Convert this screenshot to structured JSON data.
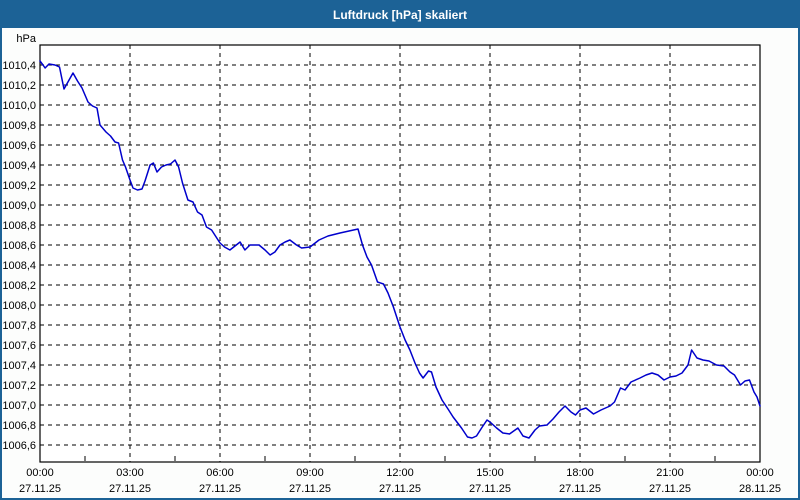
{
  "window": {
    "title": "Luftdruck [hPa] skaliert"
  },
  "colors": {
    "titlebar": "#1c6296",
    "window_border": "#1c6296",
    "window_bg": "#fcfdfc",
    "plot_bg": "#ffffff",
    "grid": "#000000",
    "axis": "#000000",
    "line": "#0000cc",
    "text": "#000000",
    "title_text": "#ffffff"
  },
  "chart_data": {
    "type": "line",
    "title": "Luftdruck [hPa] skaliert",
    "ylabel": "hPa",
    "grid": "dashed",
    "legend": "none",
    "y_axis": {
      "min": 1006.43,
      "max": 1010.6,
      "decimal_separator": ","
    },
    "x_axis": {
      "min_hours": 0,
      "max_hours": 24
    },
    "y_ticks": [
      {
        "label": "1010,4",
        "value": 1010.4
      },
      {
        "label": "1010,2",
        "value": 1010.2
      },
      {
        "label": "1010,0",
        "value": 1010.0
      },
      {
        "label": "1009,8",
        "value": 1009.8
      },
      {
        "label": "1009,6",
        "value": 1009.6
      },
      {
        "label": "1009,4",
        "value": 1009.4
      },
      {
        "label": "1009,2",
        "value": 1009.2
      },
      {
        "label": "1009,0",
        "value": 1009.0
      },
      {
        "label": "1008,8",
        "value": 1008.8
      },
      {
        "label": "1008,6",
        "value": 1008.6
      },
      {
        "label": "1008,4",
        "value": 1008.4
      },
      {
        "label": "1008,2",
        "value": 1008.2
      },
      {
        "label": "1008,0",
        "value": 1008.0
      },
      {
        "label": "1007,8",
        "value": 1007.8
      },
      {
        "label": "1007,6",
        "value": 1007.6
      },
      {
        "label": "1007,4",
        "value": 1007.4
      },
      {
        "label": "1007,2",
        "value": 1007.2
      },
      {
        "label": "1007,0",
        "value": 1007.0
      },
      {
        "label": "1006,8",
        "value": 1006.8
      },
      {
        "label": "1006,6",
        "value": 1006.6
      }
    ],
    "x_ticks": [
      {
        "hour": 0,
        "time": "00:00",
        "date": "27.11.25"
      },
      {
        "hour": 3,
        "time": "03:00",
        "date": "27.11.25"
      },
      {
        "hour": 6,
        "time": "06:00",
        "date": "27.11.25"
      },
      {
        "hour": 9,
        "time": "09:00",
        "date": "27.11.25"
      },
      {
        "hour": 12,
        "time": "12:00",
        "date": "27.11.25"
      },
      {
        "hour": 15,
        "time": "15:00",
        "date": "27.11.25"
      },
      {
        "hour": 18,
        "time": "18:00",
        "date": "27.11.25"
      },
      {
        "hour": 21,
        "time": "21:00",
        "date": "27.11.25"
      },
      {
        "hour": 24,
        "time": "00:00",
        "date": "28.11.25"
      }
    ],
    "minor_x_tick_hours": [
      1.5,
      4.5,
      7.5,
      10.5,
      13.5,
      16.5,
      19.5,
      22.5
    ],
    "series": [
      {
        "name": "Luftdruck",
        "color": "#0000cc",
        "points": [
          [
            0,
            1010.44
          ],
          [
            0.1,
            1010.4
          ],
          [
            0.17,
            1010.37
          ],
          [
            0.3,
            1010.41
          ],
          [
            0.5,
            1010.4
          ],
          [
            0.65,
            1010.38
          ],
          [
            0.8,
            1010.16
          ],
          [
            0.95,
            1010.24
          ],
          [
            1.1,
            1010.32
          ],
          [
            1.25,
            1010.24
          ],
          [
            1.4,
            1010.17
          ],
          [
            1.6,
            1010.03
          ],
          [
            1.75,
            1009.99
          ],
          [
            1.9,
            1009.97
          ],
          [
            2.0,
            1009.8
          ],
          [
            2.2,
            1009.73
          ],
          [
            2.35,
            1009.69
          ],
          [
            2.5,
            1009.63
          ],
          [
            2.62,
            1009.62
          ],
          [
            2.75,
            1009.45
          ],
          [
            2.85,
            1009.38
          ],
          [
            3.0,
            1009.25
          ],
          [
            3.1,
            1009.17
          ],
          [
            3.25,
            1009.15
          ],
          [
            3.4,
            1009.16
          ],
          [
            3.5,
            1009.24
          ],
          [
            3.67,
            1009.4
          ],
          [
            3.78,
            1009.42
          ],
          [
            3.9,
            1009.33
          ],
          [
            4.05,
            1009.38
          ],
          [
            4.2,
            1009.4
          ],
          [
            4.35,
            1009.41
          ],
          [
            4.5,
            1009.45
          ],
          [
            4.62,
            1009.38
          ],
          [
            4.75,
            1009.22
          ],
          [
            4.93,
            1009.05
          ],
          [
            5.1,
            1009.03
          ],
          [
            5.25,
            1008.93
          ],
          [
            5.4,
            1008.9
          ],
          [
            5.55,
            1008.78
          ],
          [
            5.72,
            1008.75
          ],
          [
            6.0,
            1008.62
          ],
          [
            6.15,
            1008.58
          ],
          [
            6.33,
            1008.55
          ],
          [
            6.5,
            1008.59
          ],
          [
            6.67,
            1008.63
          ],
          [
            6.83,
            1008.55
          ],
          [
            7.0,
            1008.6
          ],
          [
            7.3,
            1008.6
          ],
          [
            7.5,
            1008.55
          ],
          [
            7.67,
            1008.5
          ],
          [
            7.83,
            1008.53
          ],
          [
            8.0,
            1008.6
          ],
          [
            8.17,
            1008.63
          ],
          [
            8.33,
            1008.65
          ],
          [
            8.55,
            1008.6
          ],
          [
            8.72,
            1008.57
          ],
          [
            9.0,
            1008.58
          ],
          [
            9.3,
            1008.65
          ],
          [
            9.6,
            1008.69
          ],
          [
            10.0,
            1008.72
          ],
          [
            10.3,
            1008.74
          ],
          [
            10.6,
            1008.76
          ],
          [
            10.75,
            1008.6
          ],
          [
            10.9,
            1008.48
          ],
          [
            11.05,
            1008.4
          ],
          [
            11.25,
            1008.23
          ],
          [
            11.45,
            1008.21
          ],
          [
            11.6,
            1008.12
          ],
          [
            11.78,
            1007.98
          ],
          [
            12.0,
            1007.78
          ],
          [
            12.17,
            1007.65
          ],
          [
            12.33,
            1007.55
          ],
          [
            12.5,
            1007.42
          ],
          [
            12.65,
            1007.32
          ],
          [
            12.77,
            1007.27
          ],
          [
            12.95,
            1007.34
          ],
          [
            13.05,
            1007.33
          ],
          [
            13.2,
            1007.18
          ],
          [
            13.4,
            1007.05
          ],
          [
            13.6,
            1006.96
          ],
          [
            13.77,
            1006.88
          ],
          [
            14.05,
            1006.77
          ],
          [
            14.25,
            1006.68
          ],
          [
            14.4,
            1006.67
          ],
          [
            14.55,
            1006.69
          ],
          [
            14.72,
            1006.77
          ],
          [
            14.9,
            1006.85
          ],
          [
            15.0,
            1006.83
          ],
          [
            15.22,
            1006.77
          ],
          [
            15.43,
            1006.72
          ],
          [
            15.65,
            1006.71
          ],
          [
            15.93,
            1006.77
          ],
          [
            16.1,
            1006.69
          ],
          [
            16.3,
            1006.67
          ],
          [
            16.5,
            1006.75
          ],
          [
            16.65,
            1006.79
          ],
          [
            16.9,
            1006.8
          ],
          [
            17.1,
            1006.86
          ],
          [
            17.3,
            1006.93
          ],
          [
            17.5,
            1006.99
          ],
          [
            17.7,
            1006.93
          ],
          [
            17.85,
            1006.9
          ],
          [
            18.0,
            1006.95
          ],
          [
            18.2,
            1006.97
          ],
          [
            18.45,
            1006.91
          ],
          [
            18.7,
            1006.95
          ],
          [
            19.0,
            1006.99
          ],
          [
            19.15,
            1007.03
          ],
          [
            19.35,
            1007.17
          ],
          [
            19.5,
            1007.15
          ],
          [
            19.7,
            1007.23
          ],
          [
            20.0,
            1007.27
          ],
          [
            20.2,
            1007.3
          ],
          [
            20.4,
            1007.32
          ],
          [
            20.6,
            1007.3
          ],
          [
            20.8,
            1007.25
          ],
          [
            21.0,
            1007.28
          ],
          [
            21.2,
            1007.29
          ],
          [
            21.4,
            1007.32
          ],
          [
            21.6,
            1007.4
          ],
          [
            21.72,
            1007.55
          ],
          [
            21.9,
            1007.47
          ],
          [
            22.1,
            1007.45
          ],
          [
            22.3,
            1007.44
          ],
          [
            22.55,
            1007.4
          ],
          [
            22.8,
            1007.39
          ],
          [
            23.0,
            1007.33
          ],
          [
            23.15,
            1007.3
          ],
          [
            23.35,
            1007.2
          ],
          [
            23.5,
            1007.24
          ],
          [
            23.65,
            1007.25
          ],
          [
            23.8,
            1007.13
          ],
          [
            23.9,
            1007.08
          ],
          [
            24.0,
            1006.99
          ]
        ]
      }
    ]
  }
}
